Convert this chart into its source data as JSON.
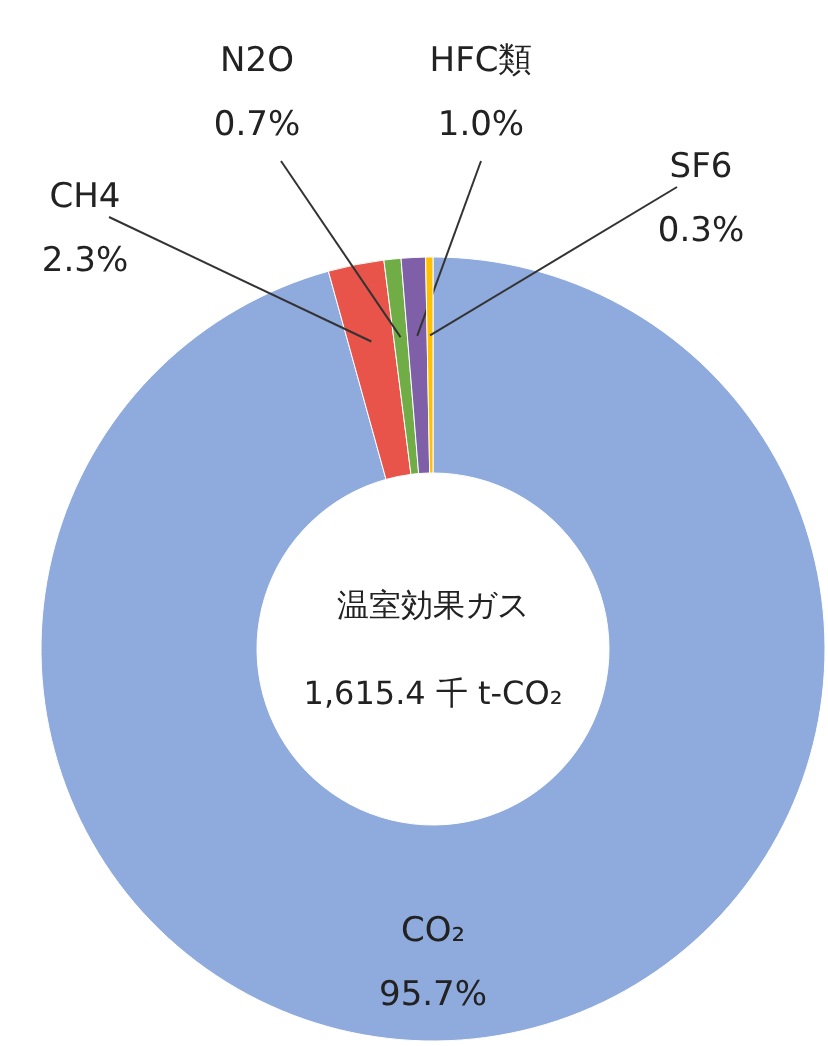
{
  "chart_data": {
    "type": "donut",
    "categories": [
      "CO₂",
      "CH4",
      "N2O",
      "HFC類",
      "SF6"
    ],
    "values": [
      95.7,
      2.3,
      0.7,
      1.0,
      0.3
    ],
    "value_labels": [
      "95.7%",
      "2.3%",
      "0.7%",
      "1.0%",
      "0.3%"
    ],
    "colors": [
      "#8faadc",
      "#e8534a",
      "#70ad47",
      "#7f60a8",
      "#ffc000"
    ],
    "annotations": [
      "温室効果ガス",
      "1,615.4 千 t-CO₂"
    ],
    "legend": false
  }
}
